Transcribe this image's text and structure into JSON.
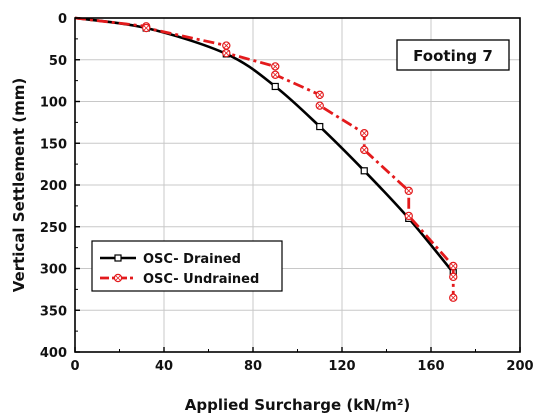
{
  "chart_data": {
    "type": "line",
    "xlabel": "Applied Surcharge (kN/m²)",
    "ylabel": "Vertical Settlement (mm)",
    "xlim": [
      0,
      200
    ],
    "ylim": [
      0,
      400
    ],
    "y_inverted": true,
    "x_ticks": [
      0,
      40,
      80,
      120,
      160,
      200
    ],
    "y_ticks": [
      0,
      50,
      100,
      150,
      200,
      250,
      300,
      350,
      400
    ],
    "grid": true,
    "legend_position": "lower-left",
    "annotation": "Footing 7",
    "series": [
      {
        "name": "OSC- Drained",
        "color": "#000000",
        "line_style": "solid",
        "marker": "square",
        "x": [
          0,
          32,
          68,
          90,
          110,
          130,
          150,
          170
        ],
        "y": [
          0,
          12,
          43,
          82,
          130,
          183,
          240,
          305
        ]
      },
      {
        "name": "OSC- Undrained",
        "color": "#e31a1c",
        "line_style": "dash-dot",
        "marker": "circle",
        "x": [
          0,
          32,
          32,
          68,
          68,
          90,
          90,
          110,
          110,
          130,
          130,
          150,
          150,
          170,
          170,
          170
        ],
        "y": [
          0,
          10,
          12,
          33,
          42,
          58,
          68,
          92,
          105,
          138,
          158,
          207,
          237,
          297,
          310,
          335
        ]
      }
    ]
  }
}
